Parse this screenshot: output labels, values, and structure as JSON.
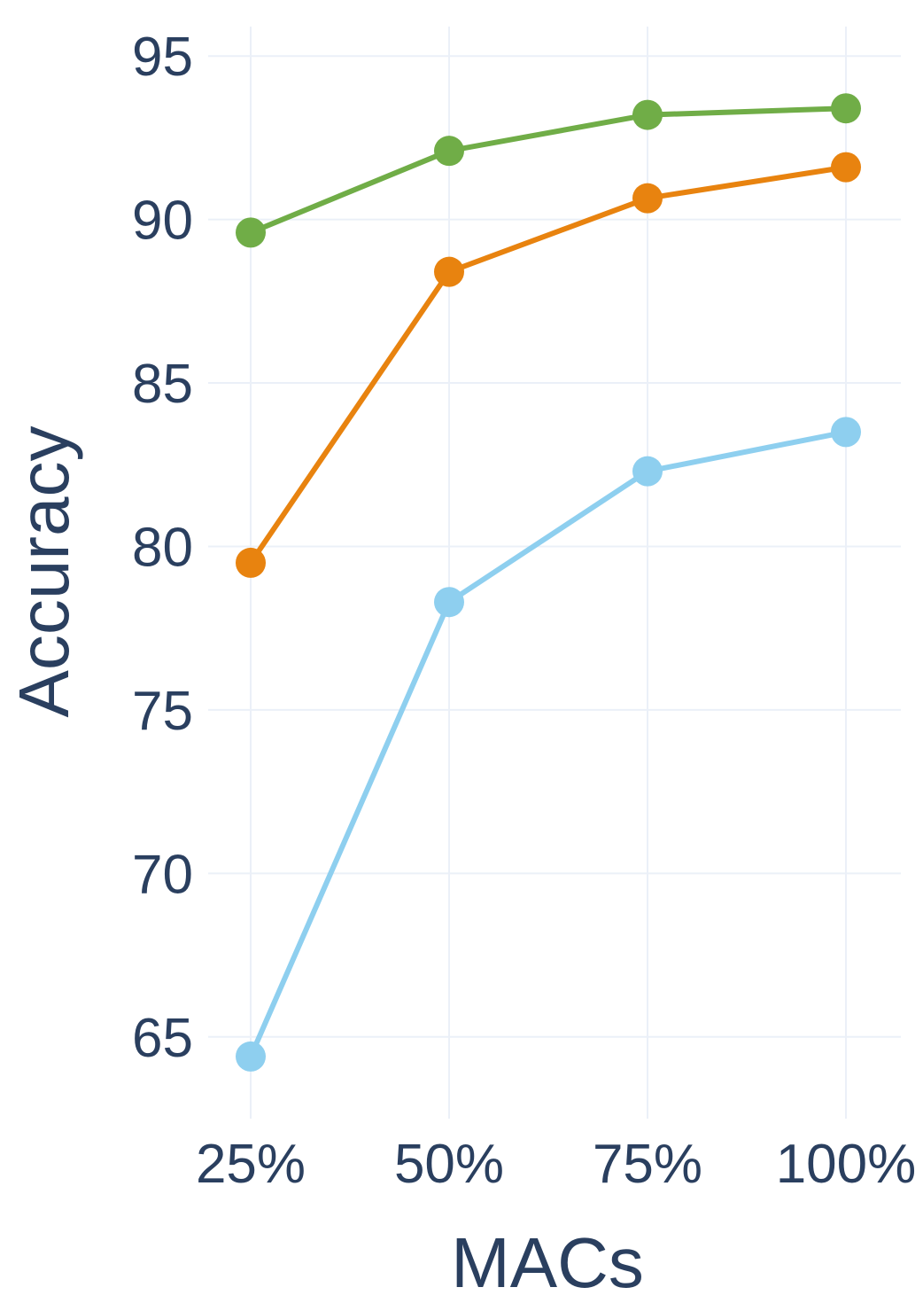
{
  "chart_data": {
    "type": "line",
    "categories": [
      "25%",
      "50%",
      "75%",
      "100%"
    ],
    "xlabel": "MACs",
    "ylabel": "Accuracy",
    "yticks": [
      65,
      70,
      75,
      80,
      85,
      90,
      95
    ],
    "ylim": [
      62.5,
      95.9
    ],
    "grid": true,
    "series": [
      {
        "color": "#70ad47",
        "values": [
          89.6,
          92.1,
          93.2,
          93.4
        ]
      },
      {
        "color": "#e8830f",
        "values": [
          79.5,
          88.4,
          90.65,
          91.6
        ]
      },
      {
        "color": "#8ecfef",
        "values": [
          64.4,
          78.3,
          82.3,
          83.5
        ]
      }
    ]
  }
}
